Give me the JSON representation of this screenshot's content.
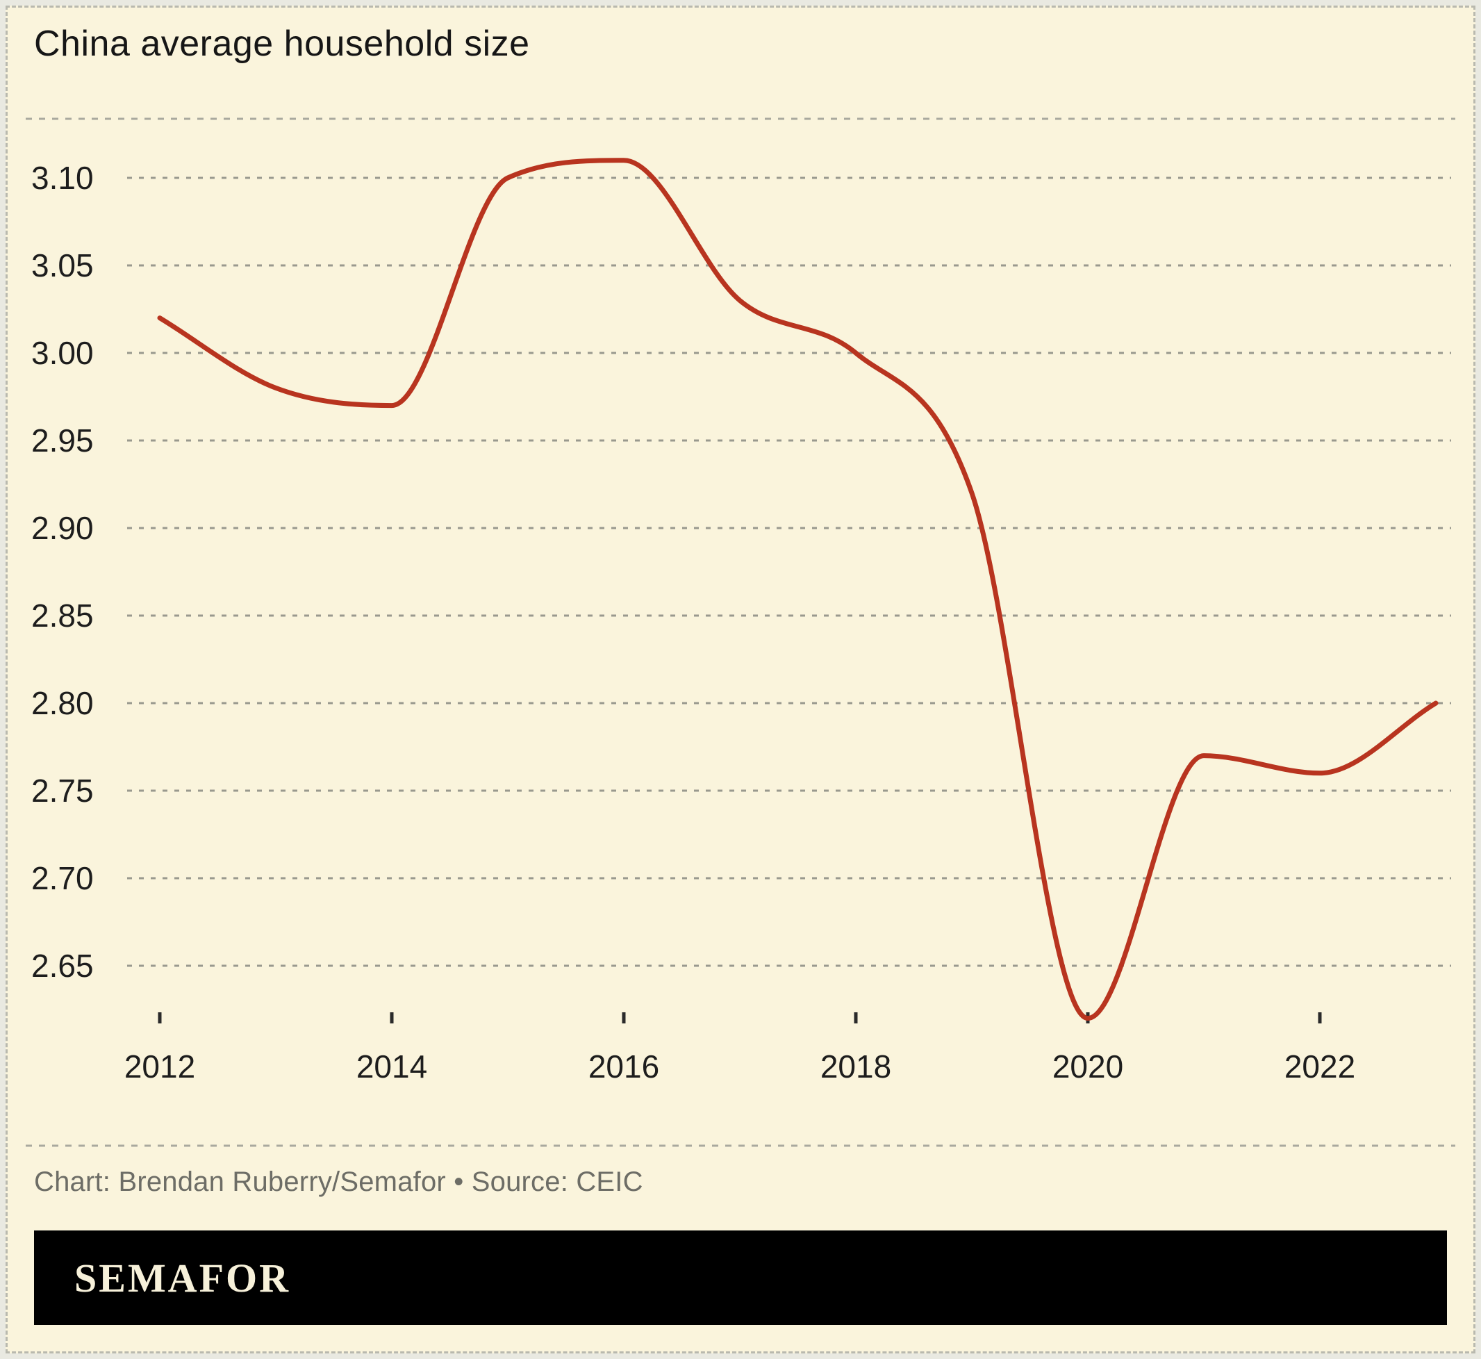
{
  "title": "China average household size",
  "caption": "Chart: Brendan Ruberry/Semafor • Source: CEIC",
  "logo": "SEMAFOR",
  "colors": {
    "background": "#faf4dc",
    "line": "#b8341f",
    "grid": "#99998e",
    "rule": "#a9a99e",
    "tick": "#2a2a2a",
    "text": "#1d1d1d",
    "caption_text": "#6d6d66",
    "logo_bar": "#000000",
    "logo_text": "#f7f1da"
  },
  "chart_data": {
    "type": "line",
    "title": "China average household size",
    "x": [
      2012,
      2013,
      2014,
      2015,
      2016,
      2017,
      2018,
      2019,
      2020,
      2021,
      2022,
      2023
    ],
    "series": [
      {
        "name": "China average household size",
        "values": [
          3.02,
          2.98,
          2.97,
          3.1,
          3.11,
          3.03,
          3.0,
          2.92,
          2.62,
          2.77,
          2.76,
          2.8
        ]
      }
    ],
    "yticks": [
      3.1,
      3.05,
      3.0,
      2.95,
      2.9,
      2.85,
      2.8,
      2.75,
      2.7,
      2.65
    ],
    "xticks": [
      2012,
      2014,
      2016,
      2018,
      2020,
      2022
    ],
    "ylim": [
      2.6,
      3.135
    ],
    "xlim": [
      2012,
      2023
    ],
    "xlabel": "",
    "ylabel": "",
    "grid": "horizontal-dotted",
    "legend": "none",
    "line_color": "#b8341f"
  }
}
